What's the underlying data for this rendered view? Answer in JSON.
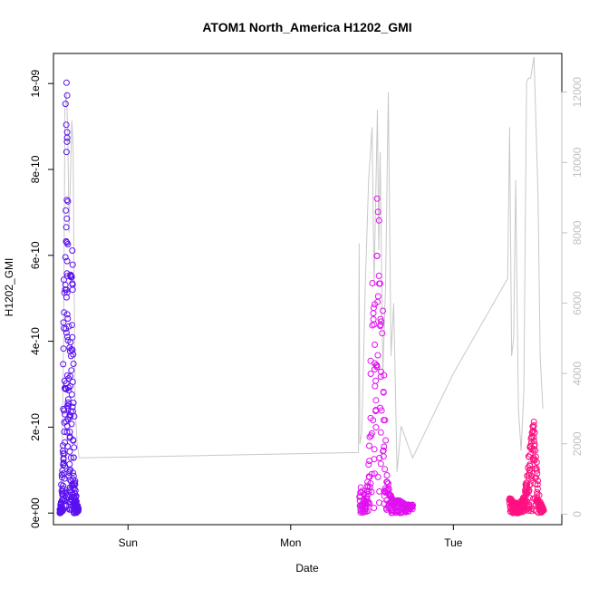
{
  "chart_data": {
    "type": "scatter",
    "title": "ATOM1 North_America H1202_GMI",
    "xlabel": "Date",
    "ylabel": "H1202_GMI",
    "x_unit": "hours from Sat 00:00",
    "xlim": [
      13,
      88
    ],
    "ylim": [
      -2.7e-11,
      1.07e-09
    ],
    "y2lim": [
      -300,
      13100
    ],
    "x_ticks": [
      {
        "x": 24,
        "label": "Sun"
      },
      {
        "x": 48,
        "label": "Mon"
      },
      {
        "x": 72,
        "label": "Tue"
      }
    ],
    "y_ticks": [
      {
        "v": 0,
        "label": "0e+00"
      },
      {
        "v": 2e-10,
        "label": "2e-10"
      },
      {
        "v": 4e-10,
        "label": "4e-10"
      },
      {
        "v": 6e-10,
        "label": "6e-10"
      },
      {
        "v": 8e-10,
        "label": "8e-10"
      },
      {
        "v": 1e-09,
        "label": "1e-09"
      }
    ],
    "y2_ticks": [
      {
        "v": 0,
        "label": "0"
      },
      {
        "v": 2000,
        "label": "2000"
      },
      {
        "v": 4000,
        "label": "4000"
      },
      {
        "v": 6000,
        "label": "6000"
      },
      {
        "v": 8000,
        "label": "8000"
      },
      {
        "v": 10000,
        "label": "10000"
      },
      {
        "v": 12000,
        "label": "12000"
      }
    ],
    "grid": false,
    "legend": "none",
    "colors": {
      "cluster1": "#5a10f0",
      "cluster2": "#e010f0",
      "cluster3": "#ff1080",
      "secondary_line": "#c8c8c8",
      "right_axis": "#c0c0c0"
    },
    "clusters": [
      {
        "color_key": "cluster1",
        "x_range": [
          14.0,
          16.6
        ],
        "anchors": [
          [
            14.0,
            0.0
          ],
          [
            14.2,
            3e-11
          ],
          [
            14.4,
            1.5e-10
          ],
          [
            14.5,
            2.2e-10
          ],
          [
            14.6,
            4.8e-10
          ],
          [
            14.7,
            6.4e-10
          ],
          [
            14.8,
            5.5e-10
          ],
          [
            14.9,
            1.04e-09
          ],
          [
            15.0,
            9.4e-10
          ],
          [
            15.1,
            7e-10
          ],
          [
            15.2,
            5e-10
          ],
          [
            15.3,
            3.2e-10
          ],
          [
            15.4,
            1.4e-10
          ],
          [
            15.5,
            5e-11
          ],
          [
            15.6,
            6.5e-10
          ],
          [
            15.7,
            6.3e-10
          ],
          [
            15.8,
            5.1e-10
          ],
          [
            15.9,
            3.9e-10
          ],
          [
            16.0,
            1e-10
          ],
          [
            16.2,
            5e-11
          ],
          [
            16.4,
            2e-11
          ],
          [
            16.6,
            1e-11
          ]
        ]
      },
      {
        "color_key": "cluster2",
        "x_range": [
          58.2,
          66.0
        ],
        "anchors": [
          [
            58.2,
            3e-11
          ],
          [
            58.5,
            7e-11
          ],
          [
            58.8,
            2e-11
          ],
          [
            59.3,
            4e-11
          ],
          [
            59.8,
            2.2e-10
          ],
          [
            60.1,
            5.9e-10
          ],
          [
            60.4,
            4.5e-10
          ],
          [
            60.6,
            2.5e-10
          ],
          [
            60.8,
            7.8e-10
          ],
          [
            61.0,
            7e-10
          ],
          [
            61.2,
            4.5e-10
          ],
          [
            61.5,
            5.4e-10
          ],
          [
            61.8,
            2.5e-10
          ],
          [
            62.0,
            1e-10
          ],
          [
            62.5,
            5e-11
          ],
          [
            63.0,
            3e-11
          ],
          [
            64.0,
            3e-11
          ],
          [
            65.0,
            2e-11
          ],
          [
            66.0,
            2e-11
          ]
        ]
      },
      {
        "color_key": "cluster3",
        "x_range": [
          80.3,
          85.2
        ],
        "anchors": [
          [
            80.3,
            3.5e-11
          ],
          [
            81.0,
            2.5e-11
          ],
          [
            81.8,
            2e-11
          ],
          [
            82.5,
            4e-11
          ],
          [
            83.0,
            9e-11
          ],
          [
            83.4,
            1.6e-10
          ],
          [
            83.8,
            2.3e-10
          ],
          [
            84.2,
            1.2e-10
          ],
          [
            84.6,
            3e-11
          ],
          [
            85.2,
            1e-11
          ]
        ]
      }
    ],
    "secondary_line": [
      [
        14.0,
        200
      ],
      [
        14.3,
        2000
      ],
      [
        14.5,
        5000
      ],
      [
        14.7,
        11500
      ],
      [
        14.9,
        12000
      ],
      [
        15.1,
        11000
      ],
      [
        15.3,
        8000
      ],
      [
        15.5,
        9500
      ],
      [
        15.7,
        11200
      ],
      [
        15.9,
        10500
      ],
      [
        16.0,
        8000
      ],
      [
        16.2,
        3000
      ],
      [
        16.5,
        2000
      ],
      [
        16.8,
        1600
      ],
      [
        17.0,
        1600
      ],
      [
        58.0,
        1750
      ],
      [
        58.1,
        7700
      ],
      [
        58.2,
        2000
      ],
      [
        58.5,
        2300
      ],
      [
        59.0,
        6500
      ],
      [
        59.5,
        9500
      ],
      [
        60.0,
        11000
      ],
      [
        60.3,
        6500
      ],
      [
        60.8,
        11500
      ],
      [
        61.0,
        7500
      ],
      [
        61.2,
        10300
      ],
      [
        61.6,
        4000
      ],
      [
        62.0,
        6500
      ],
      [
        62.4,
        12000
      ],
      [
        62.8,
        4500
      ],
      [
        63.2,
        6000
      ],
      [
        63.7,
        1200
      ],
      [
        64.3,
        2500
      ],
      [
        66.0,
        1600
      ],
      [
        72.0,
        4000
      ],
      [
        80.0,
        6700
      ],
      [
        80.3,
        11000
      ],
      [
        80.6,
        4500
      ],
      [
        80.9,
        5000
      ],
      [
        81.2,
        9500
      ],
      [
        81.6,
        3000
      ],
      [
        82.0,
        1800
      ],
      [
        82.4,
        3500
      ],
      [
        82.8,
        12300
      ],
      [
        83.1,
        12400
      ],
      [
        83.4,
        12400
      ],
      [
        83.9,
        13000
      ],
      [
        84.2,
        11000
      ],
      [
        84.5,
        9000
      ],
      [
        84.8,
        4500
      ],
      [
        85.2,
        3000
      ]
    ]
  }
}
